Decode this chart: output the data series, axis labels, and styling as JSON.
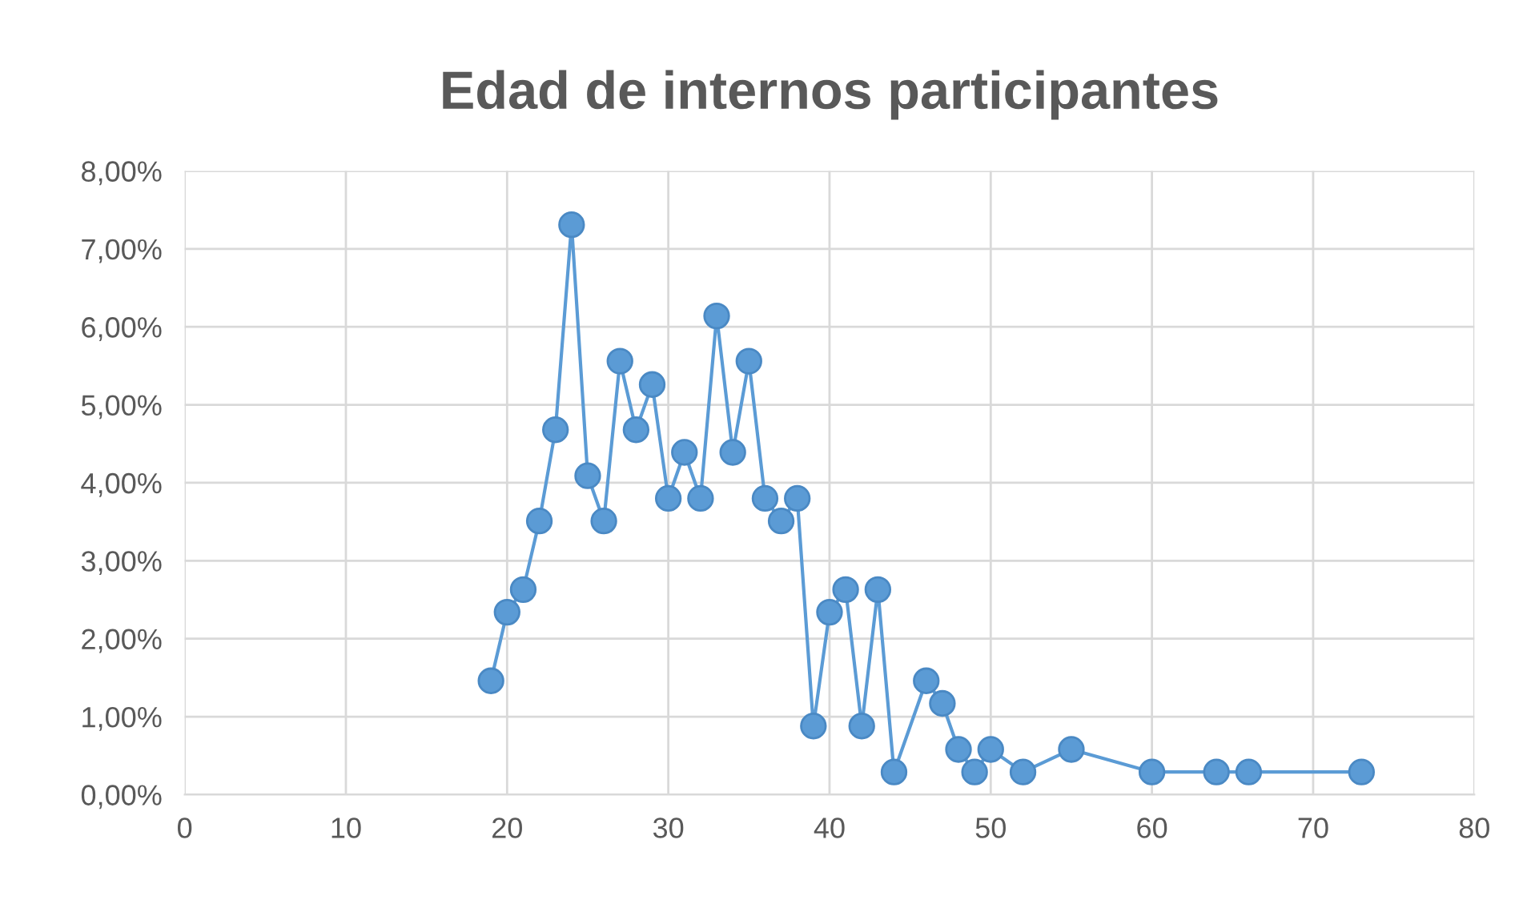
{
  "chart_data": {
    "type": "line",
    "title": "Edad de internos participantes",
    "x": [
      19,
      20,
      21,
      22,
      23,
      24,
      25,
      26,
      27,
      28,
      29,
      30,
      31,
      32,
      33,
      34,
      35,
      36,
      37,
      38,
      39,
      40,
      41,
      42,
      43,
      44,
      46,
      47,
      48,
      49,
      50,
      52,
      55,
      60,
      64,
      66,
      73
    ],
    "series": [
      {
        "color": "#5b9bd5",
        "values": [
          1.46,
          2.34,
          2.63,
          3.51,
          4.68,
          7.31,
          4.09,
          3.51,
          5.56,
          4.68,
          5.26,
          3.8,
          4.39,
          3.8,
          6.14,
          4.39,
          5.56,
          3.8,
          3.51,
          3.8,
          0.88,
          2.34,
          2.63,
          0.88,
          2.63,
          0.29,
          1.46,
          1.17,
          0.58,
          0.29,
          0.58,
          0.29,
          0.58,
          0.29,
          0.29,
          0.29,
          0.29
        ]
      }
    ],
    "line_style": "solid",
    "marker": "circle",
    "xlim": [
      0,
      80
    ],
    "xticks": [
      0,
      10,
      20,
      30,
      40,
      50,
      60,
      70,
      80
    ],
    "ylim": [
      0,
      8
    ],
    "yticks": [
      {
        "value": 0,
        "label": "0,00%"
      },
      {
        "value": 1,
        "label": "1,00%"
      },
      {
        "value": 2,
        "label": "2,00%"
      },
      {
        "value": 3,
        "label": "3,00%"
      },
      {
        "value": 4,
        "label": "4,00%"
      },
      {
        "value": 5,
        "label": "5,00%"
      },
      {
        "value": 6,
        "label": "6,00%"
      },
      {
        "value": 7,
        "label": "7,00%"
      },
      {
        "value": 8,
        "label": "8,00%"
      }
    ],
    "grid": true
  }
}
